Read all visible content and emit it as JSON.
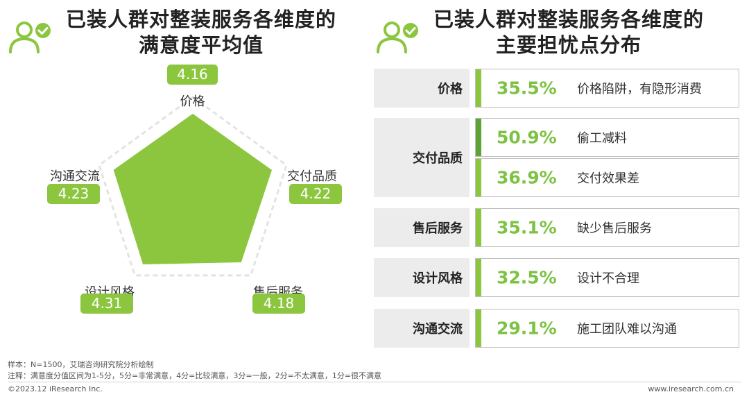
{
  "left": {
    "title_line1": "已装人群对整装服务各维度的",
    "title_line2": "满意度平均值"
  },
  "right": {
    "title_line1": "已装人群对整装服务各维度的",
    "title_line2": "主要担忧点分布"
  },
  "chart_data": [
    {
      "type": "radar",
      "title": "已装人群对整装服务各维度的满意度平均值",
      "axes": [
        "价格",
        "交付品质",
        "售后服务",
        "设计风格",
        "沟通交流"
      ],
      "values": [
        4.16,
        4.22,
        4.18,
        4.31,
        4.23
      ],
      "value_labels": [
        "4.16",
        "4.22",
        "4.18",
        "4.31",
        "4.23"
      ],
      "range": [
        0,
        5
      ]
    },
    {
      "type": "table",
      "title": "已装人群对整装服务各维度的主要担忧点分布",
      "groups": [
        {
          "category": "价格",
          "items": [
            {
              "pct": "35.5%",
              "desc": "价格陷阱，有隐形消费"
            }
          ]
        },
        {
          "category": "交付品质",
          "items": [
            {
              "pct": "50.9%",
              "desc": "偷工减料"
            },
            {
              "pct": "36.9%",
              "desc": "交付效果差"
            }
          ]
        },
        {
          "category": "售后服务",
          "items": [
            {
              "pct": "35.1%",
              "desc": "缺少售后服务"
            }
          ]
        },
        {
          "category": "设计风格",
          "items": [
            {
              "pct": "32.5%",
              "desc": "设计不合理"
            }
          ]
        },
        {
          "category": "沟通交流",
          "items": [
            {
              "pct": "29.1%",
              "desc": "施工团队难以沟通"
            }
          ]
        }
      ]
    }
  ],
  "colors": {
    "accent": "#8cc63f",
    "accent_dark": "#5ea335",
    "pct_text": "#7dc242",
    "cat_bg": "#ececec"
  },
  "icons": {
    "left": "user-check-icon",
    "right": "user-check-icon"
  },
  "footer": {
    "sample": "样本：N=1500，艾瑞咨询研究院分析绘制",
    "note": "注释：满意度分值区间为1-5分，5分=非常满意，4分=比较满意，3分=一般，2分=不太满意，1分=很不满意",
    "copyright": "©2023.12 iResearch Inc.",
    "website": "www.iresearch.com.cn"
  }
}
